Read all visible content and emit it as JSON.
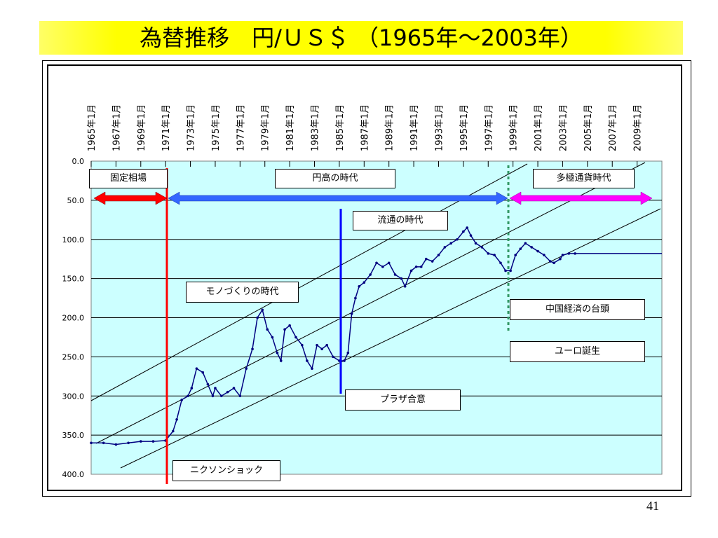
{
  "title": "為替推移　円/ＵＳ＄ （1965年～2003年）",
  "page_number": "41",
  "colors": {
    "plot_bg": "#ccffff",
    "series": "#000080",
    "fixed_arrow": "#ff0000",
    "high_yen_arrow": "#3366ff",
    "multi_currency_arrow": "#ff00ff",
    "nixon_line": "#ff0000",
    "plaza_line": "#0000ff",
    "euro_line": "#339966",
    "title_bg": "#ffff00"
  },
  "annotations": {
    "fixed_rate": "固定相場",
    "high_yen_era": "円高の時代",
    "multi_currency_era": "多極通貨時代",
    "distribution_era": "流通の時代",
    "monozukuri_era": "モノづくりの時代",
    "china_rise": "中国経済の台頭",
    "euro_birth": "ユーロ誕生",
    "plaza_accord": "プラザ合意",
    "nixon_shock": "ニクソンショック"
  },
  "chart_data": {
    "type": "line",
    "title": "為替推移　円/ＵＳ＄ （1965年～2003年）",
    "xlabel": "",
    "ylabel": "",
    "y_reversed": true,
    "ylim": [
      0,
      400
    ],
    "xlim": [
      1965,
      2011
    ],
    "grid": true,
    "y_ticks": [
      "0.0",
      "50.0",
      "100.0",
      "150.0",
      "200.0",
      "250.0",
      "300.0",
      "350.0",
      "400.0"
    ],
    "x_ticks": [
      "1965年1月",
      "1967年1月",
      "1969年1月",
      "1971年1月",
      "1973年1月",
      "1975年1月",
      "1977年1月",
      "1979年1月",
      "1981年1月",
      "1983年1月",
      "1985年1月",
      "1987年1月",
      "1989年1月",
      "1991年1月",
      "1993年1月",
      "1995年1月",
      "1997年1月",
      "1999年1月",
      "2001年1月",
      "2003年1月",
      "2005年1月",
      "2007年1月",
      "2009年1月"
    ],
    "series": [
      {
        "name": "",
        "x": [
          1965.0,
          1966.0,
          1967.0,
          1968.0,
          1969.0,
          1970.0,
          1971.0,
          1971.6,
          1971.9,
          1972.3,
          1972.8,
          1973.1,
          1973.5,
          1974.0,
          1974.4,
          1974.8,
          1975.0,
          1975.5,
          1976.0,
          1976.5,
          1977.0,
          1977.5,
          1978.0,
          1978.4,
          1978.8,
          1979.2,
          1979.6,
          1980.0,
          1980.3,
          1980.6,
          1981.0,
          1981.5,
          1982.0,
          1982.4,
          1982.8,
          1983.2,
          1983.6,
          1984.0,
          1984.5,
          1985.0,
          1985.4,
          1985.7,
          1986.0,
          1986.3,
          1986.6,
          1987.0,
          1987.5,
          1988.0,
          1988.5,
          1989.0,
          1989.5,
          1990.0,
          1990.3,
          1990.8,
          1991.2,
          1991.6,
          1992.0,
          1992.5,
          1993.0,
          1993.5,
          1994.0,
          1994.5,
          1995.0,
          1995.3,
          1995.6,
          1996.0,
          1996.5,
          1997.0,
          1997.5,
          1998.0,
          1998.4,
          1998.8,
          1999.2,
          1999.6,
          2000.0,
          2000.5,
          2001.0,
          2001.5,
          2002.0,
          2002.3,
          2002.8,
          2003.0,
          2003.5,
          2004.0,
          2006.0,
          2008.0,
          2010.0,
          2011.0
        ],
        "y": [
          360,
          360,
          362,
          360,
          358,
          358,
          357,
          345,
          330,
          305,
          300,
          290,
          265,
          270,
          285,
          300,
          290,
          300,
          295,
          290,
          300,
          265,
          240,
          200,
          190,
          215,
          225,
          245,
          255,
          215,
          210,
          225,
          235,
          255,
          265,
          235,
          240,
          235,
          250,
          255,
          255,
          245,
          195,
          175,
          160,
          155,
          145,
          130,
          135,
          130,
          145,
          150,
          160,
          140,
          135,
          135,
          125,
          128,
          120,
          110,
          105,
          100,
          90,
          85,
          95,
          105,
          110,
          118,
          120,
          130,
          140,
          140,
          120,
          112,
          105,
          110,
          115,
          120,
          128,
          130,
          125,
          120,
          118,
          118,
          118,
          118,
          118,
          118
        ]
      }
    ]
  }
}
